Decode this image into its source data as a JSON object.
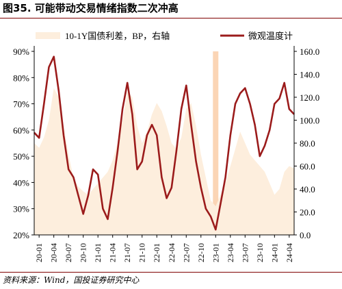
{
  "header": {
    "title": "图35. 可能带动交易情绪指数二次冲高"
  },
  "footer": {
    "source": "资料来源：Wind，国投证券研究中心"
  },
  "colors": {
    "spread_fill": "#fdeedd",
    "sentiment_line": "#9b1b1b",
    "highlight_band": "#fbd5b5",
    "rule": "#7f0000"
  },
  "chart_data": {
    "type": "line",
    "legend": {
      "position": "top",
      "items": [
        "10-1Y国债利差，BP，右轴",
        "微观温度计"
      ]
    },
    "y_left": {
      "min": 20,
      "max": 90,
      "ticks": [
        "20%",
        "30%",
        "40%",
        "50%",
        "60%",
        "70%",
        "80%",
        "90%"
      ],
      "tick_values": [
        20,
        30,
        40,
        50,
        60,
        70,
        80,
        90
      ]
    },
    "y_right": {
      "min": 0,
      "max": 160,
      "ticks": [
        "0.0",
        "20.0",
        "40.0",
        "60.0",
        "80.0",
        "100.0",
        "120.0",
        "140.0",
        "160.0"
      ],
      "tick_values": [
        0,
        20,
        40,
        60,
        80,
        100,
        120,
        140,
        160
      ]
    },
    "x": {
      "start": "2019-12",
      "end": "2024-05",
      "tick_labels": [
        "20-01",
        "20-04",
        "20-07",
        "20-10",
        "21-01",
        "21-04",
        "21-07",
        "21-10",
        "22-01",
        "22-04",
        "22-07",
        "22-10",
        "23-01",
        "23-04",
        "23-07",
        "23-10",
        "24-01",
        "24-04"
      ]
    },
    "highlight_band": {
      "from": "2023-01",
      "to": "2023-01"
    },
    "series": [
      {
        "name": "10-1Y国债利差，BP，右轴",
        "axis": "right",
        "kind": "area",
        "points": [
          [
            "2019-12",
            80
          ],
          [
            "2020-01",
            76
          ],
          [
            "2020-02",
            85
          ],
          [
            "2020-03",
            100
          ],
          [
            "2020-04",
            128
          ],
          [
            "2020-05",
            120
          ],
          [
            "2020-06",
            95
          ],
          [
            "2020-07",
            70
          ],
          [
            "2020-08",
            50
          ],
          [
            "2020-09",
            42
          ],
          [
            "2020-10",
            38
          ],
          [
            "2020-11",
            35
          ],
          [
            "2020-12",
            40
          ],
          [
            "2021-01",
            45
          ],
          [
            "2021-02",
            50
          ],
          [
            "2021-03",
            55
          ],
          [
            "2021-04",
            65
          ],
          [
            "2021-05",
            80
          ],
          [
            "2021-06",
            100
          ],
          [
            "2021-07",
            125
          ],
          [
            "2021-08",
            120
          ],
          [
            "2021-09",
            95
          ],
          [
            "2021-10",
            80
          ],
          [
            "2021-11",
            90
          ],
          [
            "2021-12",
            105
          ],
          [
            "2022-01",
            115
          ],
          [
            "2022-02",
            108
          ],
          [
            "2022-03",
            95
          ],
          [
            "2022-04",
            80
          ],
          [
            "2022-05",
            75
          ],
          [
            "2022-06",
            85
          ],
          [
            "2022-07",
            110
          ],
          [
            "2022-08",
            115
          ],
          [
            "2022-09",
            95
          ],
          [
            "2022-10",
            70
          ],
          [
            "2022-11",
            50
          ],
          [
            "2022-12",
            30
          ],
          [
            "2023-01",
            25
          ],
          [
            "2023-02",
            35
          ],
          [
            "2023-03",
            45
          ],
          [
            "2023-04",
            60
          ],
          [
            "2023-05",
            75
          ],
          [
            "2023-06",
            90
          ],
          [
            "2023-07",
            80
          ],
          [
            "2023-08",
            70
          ],
          [
            "2023-09",
            65
          ],
          [
            "2023-10",
            60
          ],
          [
            "2023-11",
            55
          ],
          [
            "2023-12",
            45
          ],
          [
            "2024-01",
            35
          ],
          [
            "2024-02",
            40
          ],
          [
            "2024-03",
            55
          ],
          [
            "2024-04",
            60
          ],
          [
            "2024-05",
            58
          ]
        ]
      },
      {
        "name": "微观温度计",
        "axis": "left",
        "kind": "line",
        "points": [
          [
            "2019-12",
            59
          ],
          [
            "2020-01",
            57
          ],
          [
            "2020-02",
            70
          ],
          [
            "2020-03",
            84
          ],
          [
            "2020-04",
            88
          ],
          [
            "2020-05",
            75
          ],
          [
            "2020-06",
            58
          ],
          [
            "2020-07",
            45
          ],
          [
            "2020-08",
            42
          ],
          [
            "2020-09",
            35
          ],
          [
            "2020-10",
            28
          ],
          [
            "2020-11",
            35
          ],
          [
            "2020-12",
            45
          ],
          [
            "2021-01",
            43
          ],
          [
            "2021-02",
            30
          ],
          [
            "2021-03",
            26
          ],
          [
            "2021-04",
            38
          ],
          [
            "2021-05",
            52
          ],
          [
            "2021-06",
            68
          ],
          [
            "2021-07",
            78
          ],
          [
            "2021-08",
            66
          ],
          [
            "2021-09",
            45
          ],
          [
            "2021-10",
            48
          ],
          [
            "2021-11",
            58
          ],
          [
            "2021-12",
            62
          ],
          [
            "2022-01",
            58
          ],
          [
            "2022-02",
            42
          ],
          [
            "2022-03",
            34
          ],
          [
            "2022-04",
            38
          ],
          [
            "2022-05",
            52
          ],
          [
            "2022-06",
            68
          ],
          [
            "2022-07",
            77
          ],
          [
            "2022-08",
            62
          ],
          [
            "2022-09",
            48
          ],
          [
            "2022-10",
            38
          ],
          [
            "2022-11",
            30
          ],
          [
            "2022-12",
            27
          ],
          [
            "2023-01",
            22
          ],
          [
            "2023-02",
            32
          ],
          [
            "2023-03",
            42
          ],
          [
            "2023-04",
            58
          ],
          [
            "2023-05",
            70
          ],
          [
            "2023-06",
            74
          ],
          [
            "2023-07",
            76
          ],
          [
            "2023-08",
            70
          ],
          [
            "2023-09",
            62
          ],
          [
            "2023-10",
            50
          ],
          [
            "2023-11",
            54
          ],
          [
            "2023-12",
            60
          ],
          [
            "2024-01",
            70
          ],
          [
            "2024-02",
            72
          ],
          [
            "2024-03",
            78
          ],
          [
            "2024-04",
            68
          ],
          [
            "2024-05",
            66
          ]
        ]
      }
    ]
  }
}
